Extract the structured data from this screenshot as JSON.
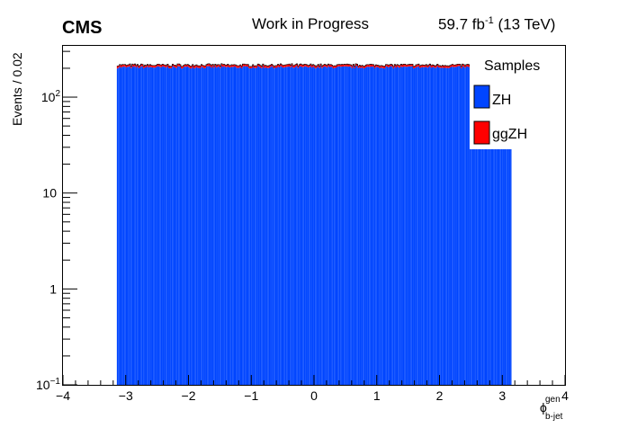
{
  "header": {
    "experiment": "CMS",
    "status": "Work in Progress",
    "lumi_value": "59.7 fb",
    "lumi_exp": "-1",
    "energy": " (13 TeV)"
  },
  "chart_data": {
    "type": "bar",
    "stacked": true,
    "ylog": true,
    "xlim": [
      -4,
      4
    ],
    "ylim": [
      0.1,
      350
    ],
    "ylabel": "Events / 0.02",
    "xlabel": {
      "main": "ϕ",
      "sup": "gen",
      "sub": "b-jet"
    },
    "x_ticks": [
      "−4",
      "−3",
      "−2",
      "−1",
      "0",
      "1",
      "2",
      "3",
      "4"
    ],
    "y_ticks": [
      {
        "value": 0.1,
        "label": "10",
        "exp": "−1"
      },
      {
        "value": 1,
        "label": "1",
        "exp": ""
      },
      {
        "value": 10,
        "label": "10",
        "exp": ""
      },
      {
        "value": 100,
        "label": "10",
        "exp": "2"
      }
    ],
    "bin_range": [
      -3.1416,
      3.1416
    ],
    "bin_width": 0.02,
    "series": [
      {
        "name": "ZH",
        "color": "#0045ff",
        "approx_level": 205
      },
      {
        "name": "ggZH",
        "color": "#ff0000",
        "approx_level": 11
      }
    ],
    "legend": {
      "title": "Samples",
      "position": "top-right"
    }
  }
}
